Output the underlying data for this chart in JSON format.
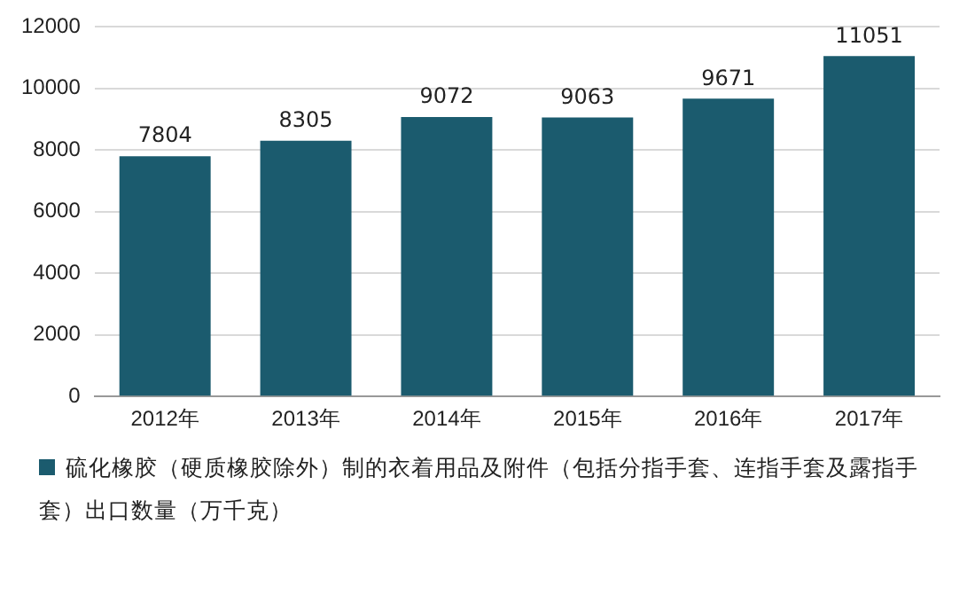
{
  "chart_data": {
    "type": "bar",
    "categories": [
      "2012年",
      "2013年",
      "2014年",
      "2015年",
      "2016年",
      "2017年"
    ],
    "series": [
      {
        "name": "硫化橡胶（硬质橡胶除外）制的衣着用品及附件（包括分指手套、连指手套及露指手套）出口数量（万千克）",
        "color": "#1b5b6e",
        "values": [
          7804,
          8305,
          9072,
          9063,
          9671,
          11051
        ]
      }
    ],
    "ylim": [
      0,
      12000
    ],
    "yticks": [
      0,
      2000,
      4000,
      6000,
      8000,
      10000,
      12000
    ],
    "grid": "y",
    "legend": "bottom",
    "data_labels": true
  }
}
